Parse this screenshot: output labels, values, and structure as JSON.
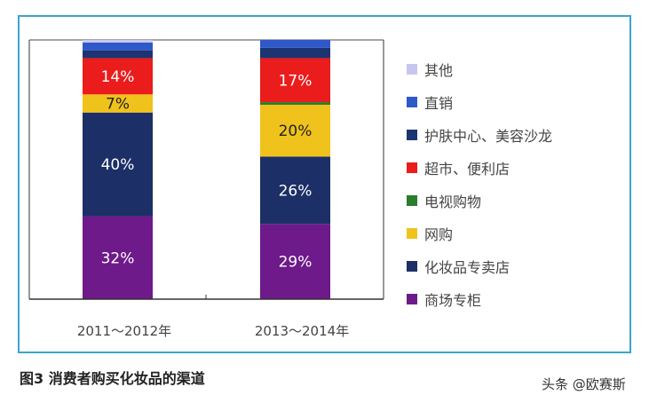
{
  "chart_data": {
    "type": "bar",
    "stacked": true,
    "categories": [
      "2011～2012年",
      "2013～2014年"
    ],
    "ylim": [
      0,
      100
    ],
    "legend_position": "right",
    "series": [
      {
        "name": "商场专柜",
        "color": "#6e1a8a",
        "values": [
          32,
          29
        ],
        "labels": [
          "32%",
          "29%"
        ],
        "label_color": "#ffffff"
      },
      {
        "name": "化妆品专卖店",
        "color": "#1c2f66",
        "values": [
          40,
          26
        ],
        "labels": [
          "40%",
          "26%"
        ],
        "label_color": "#ffffff"
      },
      {
        "name": "网购",
        "color": "#f0c21c",
        "values": [
          7,
          20
        ],
        "labels": [
          "7%",
          "20%"
        ],
        "label_color": "#222222"
      },
      {
        "name": "电视购物",
        "color": "#2a7d2a",
        "values": [
          0,
          1
        ],
        "labels": [
          "",
          ""
        ]
      },
      {
        "name": "超市、便利店",
        "color": "#ea1c1c",
        "values": [
          14,
          17
        ],
        "labels": [
          "14%",
          "17%"
        ],
        "label_color": "#ffffff"
      },
      {
        "name": "护肤中心、美容沙龙",
        "color": "#1d3473",
        "values": [
          3,
          4
        ],
        "labels": [
          "",
          ""
        ]
      },
      {
        "name": "直销",
        "color": "#2f58c9",
        "values": [
          3,
          3
        ],
        "labels": [
          "",
          ""
        ]
      },
      {
        "name": "其他",
        "color": "#c6c6f0",
        "values": [
          1,
          0
        ],
        "labels": [
          "",
          ""
        ]
      }
    ]
  },
  "caption": "图3 消费者购买化妆品的渠道",
  "watermark": "头条 @欧赛斯"
}
